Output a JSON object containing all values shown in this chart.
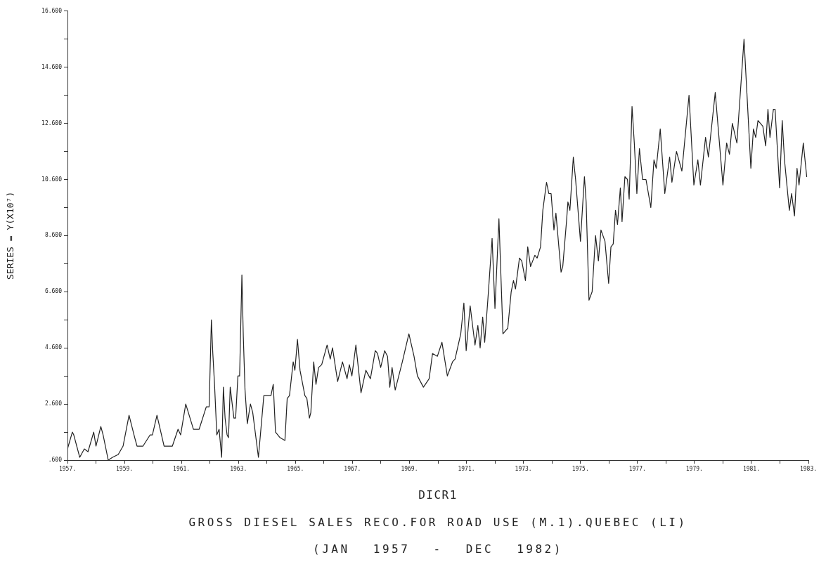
{
  "chart_data": {
    "type": "line",
    "title": "DICR1",
    "subtitle": "GROSS DIESEL SALES RECO.FOR ROAD USE (M.1).QUEBEC (LI)",
    "annotations": [
      "(JAN 1957 - DEC 1982)"
    ],
    "ylabel": "SERIES = Y(X10⁷)",
    "x": [
      1957.0,
      1957.17,
      1957.22,
      1957.43,
      1957.59,
      1957.72,
      1957.92,
      1958.0,
      1958.17,
      1958.25,
      1958.43,
      1958.58,
      1958.78,
      1958.95,
      1959.16,
      1959.36,
      1959.44,
      1959.65,
      1959.9,
      1959.98,
      1960.14,
      1960.39,
      1960.68,
      1960.88,
      1960.97,
      1961.15,
      1961.3,
      1961.42,
      1961.62,
      1961.87,
      1961.97,
      1962.05,
      1962.1,
      1962.16,
      1962.24,
      1962.32,
      1962.41,
      1962.47,
      1962.53,
      1962.6,
      1962.65,
      1962.71,
      1962.78,
      1962.84,
      1962.9,
      1962.98,
      1963.04,
      1963.12,
      1963.17,
      1963.23,
      1963.31,
      1963.42,
      1963.5,
      1963.7,
      1963.89,
      1964.14,
      1964.22,
      1964.3,
      1964.46,
      1964.63,
      1964.71,
      1964.79,
      1964.92,
      1964.98,
      1965.07,
      1965.16,
      1965.33,
      1965.4,
      1965.49,
      1965.54,
      1965.64,
      1965.72,
      1965.81,
      1965.92,
      1966.11,
      1966.22,
      1966.3,
      1966.48,
      1966.65,
      1966.81,
      1966.89,
      1966.98,
      1967.12,
      1967.3,
      1967.47,
      1967.63,
      1967.8,
      1967.88,
      1967.99,
      1968.13,
      1968.23,
      1968.31,
      1968.39,
      1968.5,
      1968.75,
      1968.98,
      1969.16,
      1969.28,
      1969.49,
      1969.69,
      1969.81,
      1969.98,
      1970.14,
      1970.33,
      1970.51,
      1970.6,
      1970.8,
      1970.91,
      1970.99,
      1971.13,
      1971.3,
      1971.4,
      1971.48,
      1971.57,
      1971.64,
      1971.75,
      1971.9,
      1972.0,
      1972.14,
      1972.28,
      1972.45,
      1972.57,
      1972.65,
      1972.72,
      1972.86,
      1972.94,
      1973.07,
      1973.15,
      1973.25,
      1973.4,
      1973.48,
      1973.6,
      1973.68,
      1973.81,
      1973.89,
      1973.97,
      1974.07,
      1974.14,
      1974.32,
      1974.38,
      1974.51,
      1974.56,
      1974.63,
      1974.75,
      1974.83,
      1975.0,
      1975.14,
      1975.2,
      1975.3,
      1975.41,
      1975.53,
      1975.63,
      1975.72,
      1975.86,
      1975.99,
      1976.07,
      1976.15,
      1976.23,
      1976.3,
      1976.4,
      1976.46,
      1976.56,
      1976.65,
      1976.71,
      1976.81,
      1976.89,
      1976.98,
      1977.07,
      1977.18,
      1977.3,
      1977.47,
      1977.58,
      1977.66,
      1977.8,
      1977.96,
      1978.13,
      1978.21,
      1978.37,
      1978.56,
      1978.81,
      1978.98,
      1979.12,
      1979.21,
      1979.39,
      1979.49,
      1979.73,
      1980.0,
      1980.13,
      1980.23,
      1980.33,
      1980.49,
      1980.74,
      1980.84,
      1980.98,
      1981.07,
      1981.15,
      1981.23,
      1981.4,
      1981.5,
      1981.58,
      1981.65,
      1981.77,
      1981.83,
      1981.99,
      1982.08,
      1982.16,
      1982.33,
      1982.41,
      1982.51,
      1982.6,
      1982.67,
      1982.82,
      1982.94
    ],
    "values": [
      1.0,
      1.6,
      1.5,
      0.7,
      1.0,
      0.9,
      1.6,
      1.1,
      1.8,
      1.5,
      0.6,
      0.7,
      0.8,
      1.1,
      2.2,
      1.4,
      1.1,
      1.1,
      1.5,
      1.5,
      2.2,
      1.1,
      1.1,
      1.7,
      1.5,
      2.6,
      2.1,
      1.7,
      1.7,
      2.5,
      2.5,
      5.6,
      4.4,
      3.3,
      1.5,
      1.7,
      0.7,
      3.2,
      2.1,
      1.5,
      1.4,
      3.2,
      2.6,
      2.1,
      2.1,
      3.6,
      3.6,
      7.2,
      5.0,
      3.1,
      1.9,
      2.6,
      2.3,
      0.7,
      2.9,
      2.9,
      3.3,
      1.6,
      1.4,
      1.3,
      2.8,
      2.9,
      4.1,
      3.8,
      4.9,
      3.8,
      2.9,
      2.8,
      2.1,
      2.3,
      4.1,
      3.3,
      3.9,
      4.0,
      4.7,
      4.2,
      4.6,
      3.4,
      4.1,
      3.5,
      4.0,
      3.6,
      4.7,
      3.0,
      3.8,
      3.5,
      4.5,
      4.4,
      3.9,
      4.5,
      4.3,
      3.2,
      3.9,
      3.1,
      4.1,
      5.1,
      4.3,
      3.6,
      3.2,
      3.5,
      4.4,
      4.3,
      4.8,
      3.6,
      4.1,
      4.2,
      5.1,
      6.2,
      4.5,
      6.1,
      4.7,
      5.4,
      4.6,
      5.7,
      4.8,
      6.3,
      8.5,
      6.0,
      9.2,
      5.1,
      5.3,
      6.6,
      7.0,
      6.7,
      7.8,
      7.7,
      7.0,
      8.2,
      7.5,
      7.9,
      7.8,
      8.2,
      9.5,
      10.5,
      10.1,
      10.1,
      8.8,
      9.4,
      7.3,
      7.5,
      9.1,
      9.8,
      9.5,
      11.4,
      10.6,
      8.4,
      10.7,
      9.8,
      6.3,
      6.6,
      8.6,
      7.7,
      8.8,
      8.4,
      6.9,
      8.2,
      8.3,
      9.5,
      9.0,
      10.3,
      9.1,
      10.7,
      10.6,
      9.9,
      13.2,
      11.9,
      10.1,
      11.7,
      10.6,
      10.6,
      9.6,
      11.3,
      11.0,
      12.4,
      10.1,
      11.4,
      10.5,
      11.6,
      10.9,
      13.6,
      10.4,
      11.3,
      10.4,
      12.1,
      11.4,
      13.7,
      10.4,
      11.9,
      11.5,
      12.6,
      11.9,
      15.6,
      13.7,
      11.0,
      12.4,
      12.1,
      12.7,
      12.5,
      11.8,
      13.1,
      12.1,
      13.1,
      13.1,
      10.3,
      12.7,
      11.3,
      9.5,
      10.1,
      9.3,
      11.0,
      10.4,
      11.9,
      10.7
    ],
    "color": "#222222",
    "marker": "none",
    "line_style": "solid",
    "grid": false,
    "xlim": [
      1957,
      1983
    ],
    "xticks": [
      {
        "value": 1957,
        "label": "1957."
      },
      {
        "value": 1958,
        "label": null
      },
      {
        "value": 1959,
        "label": "1959."
      },
      {
        "value": 1960,
        "label": null
      },
      {
        "value": 1961,
        "label": "1961."
      },
      {
        "value": 1962,
        "label": null
      },
      {
        "value": 1963,
        "label": "1963."
      },
      {
        "value": 1964,
        "label": null
      },
      {
        "value": 1965,
        "label": "1965."
      },
      {
        "value": 1966,
        "label": null
      },
      {
        "value": 1967,
        "label": "1967."
      },
      {
        "value": 1968,
        "label": null
      },
      {
        "value": 1969,
        "label": "1969."
      },
      {
        "value": 1970,
        "label": null
      },
      {
        "value": 1971,
        "label": "1971."
      },
      {
        "value": 1972,
        "label": null
      },
      {
        "value": 1973,
        "label": "1973."
      },
      {
        "value": 1974,
        "label": null
      },
      {
        "value": 1975,
        "label": "1975."
      },
      {
        "value": 1976,
        "label": null
      },
      {
        "value": 1977,
        "label": "1977."
      },
      {
        "value": 1978,
        "label": null
      },
      {
        "value": 1979,
        "label": "1979."
      },
      {
        "value": 1980,
        "label": null
      },
      {
        "value": 1981,
        "label": "1981."
      },
      {
        "value": 1982,
        "label": null
      },
      {
        "value": 1983,
        "label": "1983."
      }
    ],
    "ylim": [
      0.6,
      16.6
    ],
    "yticks": [
      {
        "value": 0.6,
        "label": ".600"
      },
      {
        "value": 1.6,
        "label": null
      },
      {
        "value": 2.6,
        "label": "2.600"
      },
      {
        "value": 3.6,
        "label": null
      },
      {
        "value": 4.6,
        "label": "4.600"
      },
      {
        "value": 5.6,
        "label": null
      },
      {
        "value": 6.6,
        "label": "6.600"
      },
      {
        "value": 7.6,
        "label": null
      },
      {
        "value": 8.6,
        "label": "8.600"
      },
      {
        "value": 9.6,
        "label": null
      },
      {
        "value": 10.6,
        "label": "10.600"
      },
      {
        "value": 11.6,
        "label": null
      },
      {
        "value": 12.6,
        "label": "12.600"
      },
      {
        "value": 13.6,
        "label": null
      },
      {
        "value": 14.6,
        "label": "14.600"
      },
      {
        "value": 15.6,
        "label": null
      },
      {
        "value": 16.6,
        "label": "16.600"
      }
    ]
  }
}
